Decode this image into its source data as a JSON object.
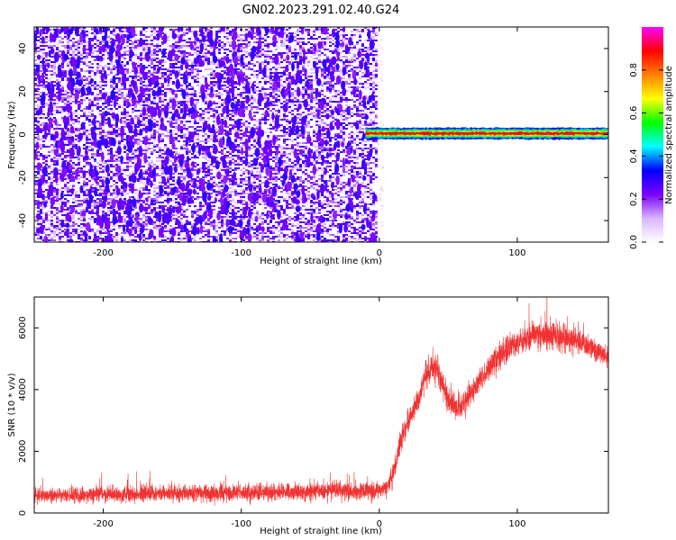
{
  "title": "GN02.2023.291.02.40.G24",
  "chart_data": [
    {
      "type": "heatmap",
      "xlabel": "Height of straight line (km)",
      "ylabel": "Frequency (Hz)",
      "xlim": [
        -250,
        166
      ],
      "ylim": [
        -50,
        50
      ],
      "xticks": [
        -200,
        -100,
        0,
        100
      ],
      "yticks": [
        -40,
        -20,
        0,
        20,
        40
      ],
      "colorbar": {
        "label": "Normalized spectral amplitude",
        "range": [
          0,
          1
        ],
        "ticks": [
          0.0,
          0.2,
          0.4,
          0.6,
          0.8
        ],
        "colormap": [
          "#ffffff",
          "#d8b4fe",
          "#7b00ff",
          "#0000ff",
          "#00ffff",
          "#00ff00",
          "#ffff00",
          "#ff8000",
          "#ff0000",
          "#ff00ff"
        ]
      },
      "features": {
        "noise_region_x": [
          -250,
          -3
        ],
        "noise_amplitude": [
          0.0,
          0.3
        ],
        "signal_line": {
          "frequency": 0.5,
          "x_start": -10,
          "x_end": 166,
          "peak_amplitude": 0.9
        }
      }
    },
    {
      "type": "line",
      "xlabel": "Height of straight line (km)",
      "ylabel": "SNR (10 * v/v)",
      "xlim": [
        -250,
        166
      ],
      "ylim": [
        0,
        7000
      ],
      "xticks": [
        -200,
        -100,
        0,
        100
      ],
      "yticks": [
        0,
        2000,
        4000,
        6000
      ],
      "color": "#f03232",
      "series": [
        {
          "x": [
            -250,
            -200,
            -150,
            -100,
            -50,
            0,
            5,
            10,
            15,
            20,
            25,
            30,
            35,
            40,
            45,
            50,
            55,
            60,
            70,
            80,
            90,
            100,
            110,
            120,
            130,
            140,
            150,
            160,
            166
          ],
          "values": [
            550,
            600,
            650,
            650,
            700,
            700,
            800,
            1300,
            2200,
            2900,
            3300,
            3900,
            4600,
            4800,
            4300,
            3600,
            3400,
            3500,
            4100,
            4700,
            5200,
            5500,
            5700,
            5800,
            5700,
            5600,
            5400,
            5200,
            5000
          ],
          "noise": [
            300,
            350,
            350,
            350,
            350,
            350,
            400,
            500,
            500,
            500,
            500,
            500,
            600,
            700,
            600,
            500,
            500,
            500,
            500,
            500,
            550,
            550,
            600,
            650,
            600,
            550,
            500,
            450,
            400
          ]
        }
      ]
    }
  ]
}
